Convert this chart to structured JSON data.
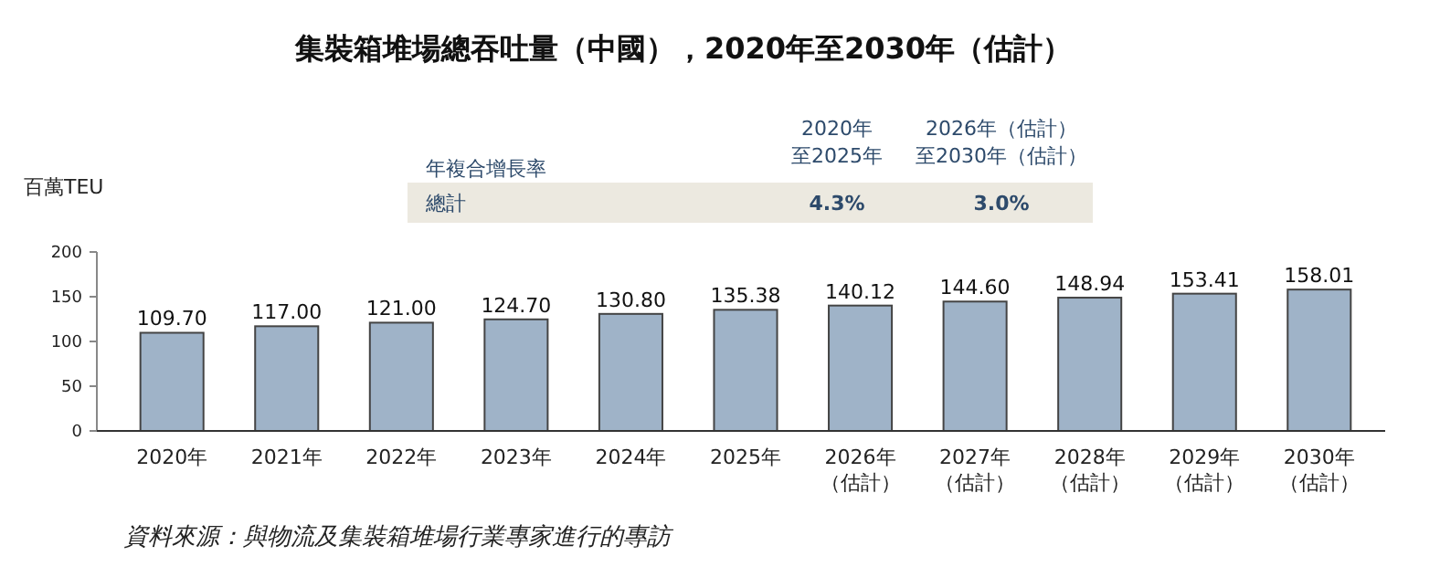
{
  "chart_data": {
    "type": "bar",
    "title": "集裝箱堆場總吞吐量（中國），2020年至2030年（估計）",
    "ylabel": "百萬TEU",
    "categories": [
      "2020年",
      "2021年",
      "2022年",
      "2023年",
      "2024年",
      "2025年",
      "2026年（估計）",
      "2027年（估計）",
      "2028年（估計）",
      "2029年（估計）",
      "2030年（估計）"
    ],
    "values": [
      109.7,
      117,
      121,
      124.7,
      130.8,
      135.38,
      140.12,
      144.6,
      148.94,
      153.41,
      158.01
    ],
    "value_labels": [
      "109.70",
      "117.00",
      "121.00",
      "124.70",
      "130.80",
      "135.38",
      "140.12",
      "144.60",
      "148.94",
      "153.41",
      "158.01"
    ],
    "color": "#9fb3c8",
    "ylim": [
      0,
      200
    ],
    "yticks": [
      0,
      50,
      100,
      150,
      200
    ],
    "grid": false,
    "annotations": [
      "年複合增長率",
      "2020年至2025年",
      "2026年（估計）至2030年（估計）",
      "總計",
      "4.3%",
      "3.0%",
      "資料來源：與物流及集裝箱堆場行業專家進行的專訪"
    ]
  }
}
